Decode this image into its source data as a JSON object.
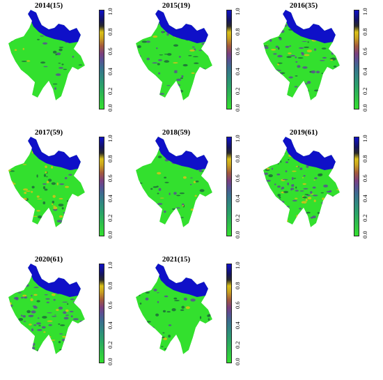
{
  "panels": [
    {
      "label": "2014(15)",
      "mix": 0.1,
      "yellow": 0.05
    },
    {
      "label": "2015(19)",
      "mix": 0.35,
      "yellow": 0.1
    },
    {
      "label": "2016(35)",
      "mix": 0.55,
      "yellow": 0.15
    },
    {
      "label": "2017(59)",
      "mix": 0.2,
      "yellow": 0.4
    },
    {
      "label": "2018(59)",
      "mix": 0.2,
      "yellow": 0.2
    },
    {
      "label": "2019(61)",
      "mix": 0.6,
      "yellow": 0.35
    },
    {
      "label": "2020(61)",
      "mix": 0.65,
      "yellow": 0.3
    },
    {
      "label": "2021(15)",
      "mix": 0.1,
      "yellow": 0.05
    }
  ],
  "colorbar": {
    "ticks": [
      "0.0",
      "0.2",
      "0.4",
      "0.6",
      "0.8",
      "1.0"
    ],
    "colors": {
      "low": "#33e02e",
      "mid": "#5a4f92",
      "yellow": "#d9c018",
      "high": "#0f10c8"
    }
  }
}
